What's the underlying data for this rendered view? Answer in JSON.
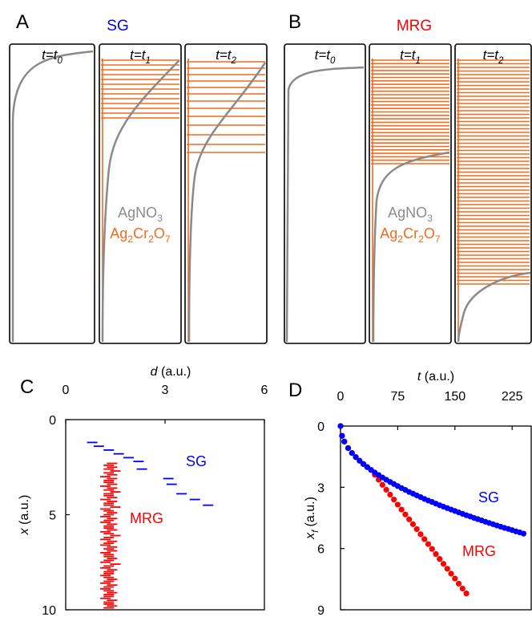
{
  "panels": [
    {
      "label": "A",
      "title": "SG",
      "title_color": "#0000ff",
      "tubes": [
        [
          "t=t",
          "0"
        ],
        [
          "t=t",
          "1"
        ],
        [
          "t=t",
          "2"
        ]
      ],
      "species": [
        [
          "AgNO",
          "3"
        ],
        [
          "Ag",
          "2",
          "Cr",
          "2",
          "O",
          "7"
        ]
      ],
      "species_colors": [
        "#8c8c8c",
        "#f26b1d"
      ]
    },
    {
      "label": "B",
      "title": "MRG",
      "title_color": "#ff0000",
      "tubes": [
        [
          "t=t",
          "0"
        ],
        [
          "t=t",
          "1"
        ],
        [
          "t=t",
          "2"
        ]
      ],
      "species": [
        [
          "AgNO",
          "3"
        ],
        [
          "Ag",
          "2",
          "Cr",
          "2",
          "O",
          "7"
        ]
      ],
      "species_colors": [
        "#8c8c8c",
        "#f26b1d"
      ]
    }
  ],
  "chart_data": [
    {
      "type": "scatter",
      "marker": "dash",
      "label": "C",
      "xlabel": [
        "d",
        " (a.u.)"
      ],
      "ylabel": [
        "x",
        " (a.u.)"
      ],
      "x_axis_position": "top",
      "y_inverted": true,
      "xlim": [
        0,
        6
      ],
      "xticks": [
        0,
        3,
        6
      ],
      "ylim": [
        0,
        10
      ],
      "yticks": [
        0,
        5,
        10
      ],
      "series": [
        {
          "name": "SG",
          "color": "#0000ff",
          "x": [
            0.8,
            1.0,
            1.3,
            1.6,
            1.9,
            2.2,
            2.3,
            3.1,
            3.2,
            3.5,
            3.9,
            4.3
          ],
          "values": [
            1.2,
            1.4,
            1.6,
            1.8,
            2.0,
            2.2,
            2.6,
            3.1,
            3.4,
            3.9,
            4.2,
            4.5
          ]
        },
        {
          "name": "MRG",
          "color": "#ff0000",
          "x": [
            1.4,
            1.3,
            1.4,
            1.3,
            1.5,
            1.3,
            1.4,
            1.2,
            1.4,
            1.3,
            1.3,
            1.4,
            1.2,
            1.4,
            1.3,
            1.5,
            1.3,
            1.3,
            1.4,
            1.2,
            1.4,
            1.3,
            1.3,
            1.5,
            1.2,
            1.3,
            1.4,
            1.3,
            1.2,
            1.4,
            1.3,
            1.2,
            1.4,
            1.3,
            1.3,
            1.4,
            1.2,
            1.3,
            1.5,
            1.3,
            1.2,
            1.4,
            1.3,
            1.2,
            1.4,
            1.3,
            1.4,
            1.2,
            1.3,
            1.3,
            1.4,
            1.3,
            1.2,
            1.5,
            1.3,
            1.2,
            1.4,
            1.3,
            1.3,
            1.2,
            1.3,
            1.4,
            1.3,
            1.2,
            1.4,
            1.3,
            1.2,
            1.3,
            1.4,
            1.3,
            1.3,
            1.2,
            1.4,
            1.3,
            1.3,
            1.4,
            1.3
          ],
          "values": [
            2.3,
            2.4,
            2.5,
            2.6,
            2.7,
            2.8,
            2.9,
            3.0,
            3.1,
            3.2,
            3.3,
            3.4,
            3.5,
            3.6,
            3.7,
            3.8,
            3.9,
            4.0,
            4.1,
            4.2,
            4.3,
            4.4,
            4.5,
            4.6,
            4.7,
            4.8,
            4.9,
            5.0,
            5.1,
            5.2,
            5.3,
            5.4,
            5.5,
            5.6,
            5.7,
            5.8,
            5.9,
            6.0,
            6.1,
            6.2,
            6.3,
            6.4,
            6.5,
            6.6,
            6.7,
            6.8,
            6.9,
            7.0,
            7.1,
            7.2,
            7.3,
            7.4,
            7.5,
            7.6,
            7.7,
            7.8,
            7.9,
            8.0,
            8.1,
            8.2,
            8.3,
            8.4,
            8.5,
            8.6,
            8.7,
            8.8,
            8.9,
            9.0,
            9.1,
            9.2,
            9.3,
            9.4,
            9.5,
            9.6,
            9.7,
            9.8,
            9.9
          ]
        }
      ]
    },
    {
      "type": "scatter",
      "marker": "dot",
      "label": "D",
      "xlabel": [
        "t",
        " (a.u.)"
      ],
      "ylabel": [
        "x",
        "f",
        " (a.u.)"
      ],
      "x_axis_position": "top",
      "y_inverted": true,
      "xlim": [
        0,
        250
      ],
      "xticks": [
        0,
        75,
        150,
        225
      ],
      "ylim": [
        0,
        9
      ],
      "yticks": [
        0,
        3,
        6,
        9
      ],
      "series": [
        {
          "name": "SG",
          "color": "#0000ff",
          "x": [
            0,
            2,
            5,
            10,
            15,
            20,
            25,
            30,
            35,
            40,
            45,
            50,
            55,
            60,
            65,
            70,
            75,
            80,
            85,
            90,
            95,
            100,
            105,
            110,
            115,
            120,
            125,
            130,
            135,
            140,
            145,
            150,
            155,
            160,
            165,
            170,
            175,
            180,
            185,
            190,
            195,
            200,
            205,
            210,
            215,
            220,
            225,
            230,
            235,
            240
          ],
          "values": [
            0,
            0.48,
            0.76,
            1.08,
            1.32,
            1.52,
            1.7,
            1.86,
            2.01,
            2.15,
            2.28,
            2.4,
            2.52,
            2.63,
            2.74,
            2.84,
            2.94,
            3.04,
            3.13,
            3.23,
            3.31,
            3.4,
            3.48,
            3.57,
            3.65,
            3.72,
            3.8,
            3.88,
            3.95,
            4.02,
            4.09,
            4.16,
            4.23,
            4.3,
            4.37,
            4.43,
            4.5,
            4.56,
            4.62,
            4.69,
            4.75,
            4.81,
            4.87,
            4.93,
            4.99,
            5.04,
            5.1,
            5.16,
            5.21,
            5.27
          ]
        },
        {
          "name": "MRG",
          "color": "#ff0000",
          "x": [
            0,
            2,
            5,
            10,
            15,
            20,
            25,
            30,
            35,
            40,
            45,
            50,
            55,
            60,
            65,
            70,
            75,
            80,
            85,
            90,
            95,
            100,
            105,
            110,
            115,
            120,
            125,
            130,
            135,
            140,
            145,
            150,
            155,
            160,
            165
          ],
          "values": [
            0,
            0.48,
            0.76,
            1.08,
            1.32,
            1.52,
            1.7,
            1.86,
            2.01,
            2.15,
            2.39,
            2.63,
            2.88,
            3.12,
            3.36,
            3.6,
            3.85,
            4.09,
            4.33,
            4.57,
            4.81,
            5.05,
            5.3,
            5.54,
            5.78,
            6.02,
            6.27,
            6.51,
            6.75,
            6.99,
            7.23,
            7.47,
            7.72,
            7.96,
            8.2
          ]
        }
      ]
    }
  ]
}
